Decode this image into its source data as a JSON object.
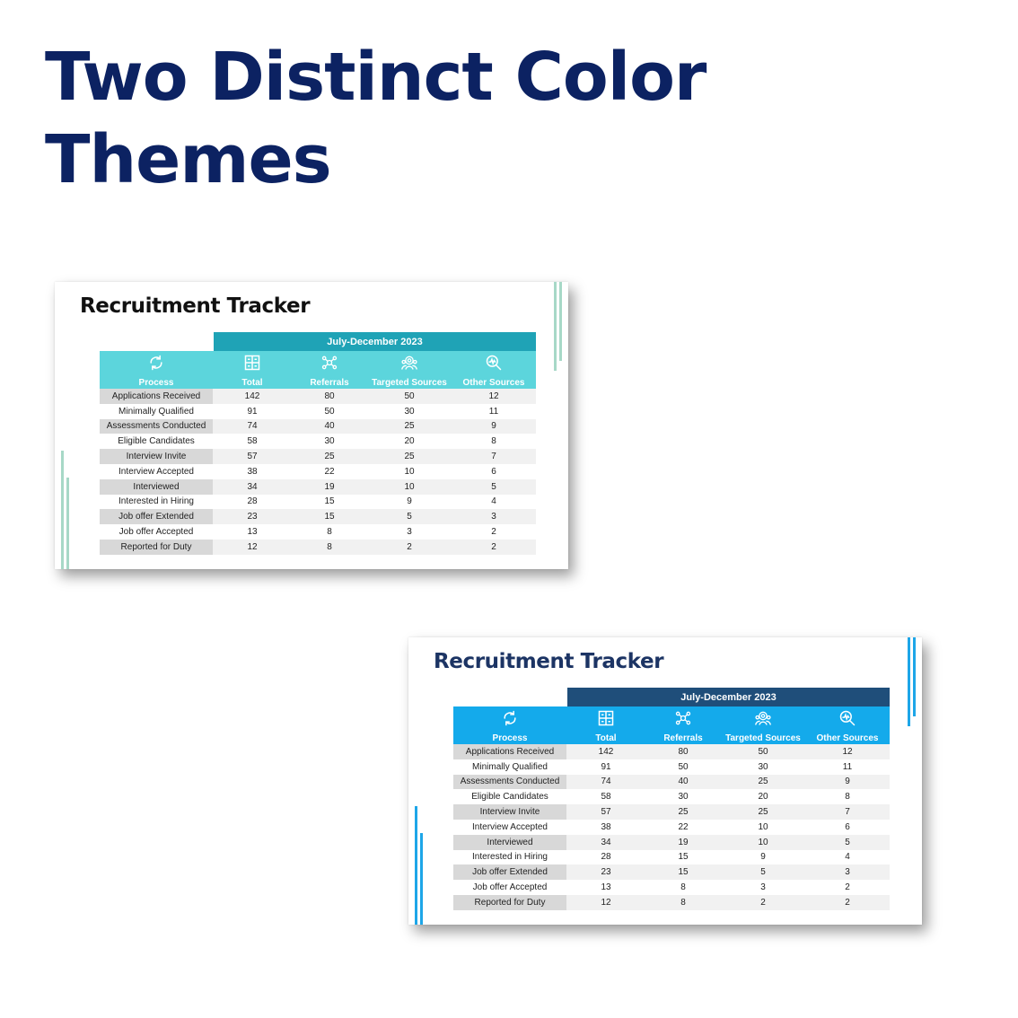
{
  "headline": [
    "Two Distinct Color",
    "Themes"
  ],
  "slides": [
    {
      "title": "Recruitment Tracker",
      "period": "July-December 2023",
      "theme": {
        "title_color": "#111111",
        "band_color": "#1fa3b6",
        "header_color": "#5cd5dc",
        "accent_color": "#a7d8c7"
      }
    },
    {
      "title": "Recruitment Tracker",
      "period": "July-December 2023",
      "theme": {
        "title_color": "#1c3464",
        "band_color": "#1f4e7a",
        "header_color": "#14aaeb",
        "accent_color": "#1da6e8"
      }
    }
  ],
  "columns": [
    {
      "label": "Process",
      "icon": "refresh-icon"
    },
    {
      "label": "Total",
      "icon": "grid-icon"
    },
    {
      "label": "Referrals",
      "icon": "network-icon"
    },
    {
      "label": "Targeted Sources",
      "icon": "people-target-icon"
    },
    {
      "label": "Other Sources",
      "icon": "magnifier-chart-icon"
    }
  ],
  "rows": [
    [
      "Applications Received",
      "142",
      "80",
      "50",
      "12"
    ],
    [
      "Minimally Qualified",
      "91",
      "50",
      "30",
      "11"
    ],
    [
      "Assessments Conducted",
      "74",
      "40",
      "25",
      "9"
    ],
    [
      "Eligible Candidates",
      "58",
      "30",
      "20",
      "8"
    ],
    [
      "Interview Invite",
      "57",
      "25",
      "25",
      "7"
    ],
    [
      "Interview Accepted",
      "38",
      "22",
      "10",
      "6"
    ],
    [
      "Interviewed",
      "34",
      "19",
      "10",
      "5"
    ],
    [
      "Interested in Hiring",
      "28",
      "15",
      "9",
      "4"
    ],
    [
      "Job offer Extended",
      "23",
      "15",
      "5",
      "3"
    ],
    [
      "Job offer Accepted",
      "13",
      "8",
      "3",
      "2"
    ],
    [
      "Reported for Duty",
      "12",
      "8",
      "2",
      "2"
    ]
  ]
}
